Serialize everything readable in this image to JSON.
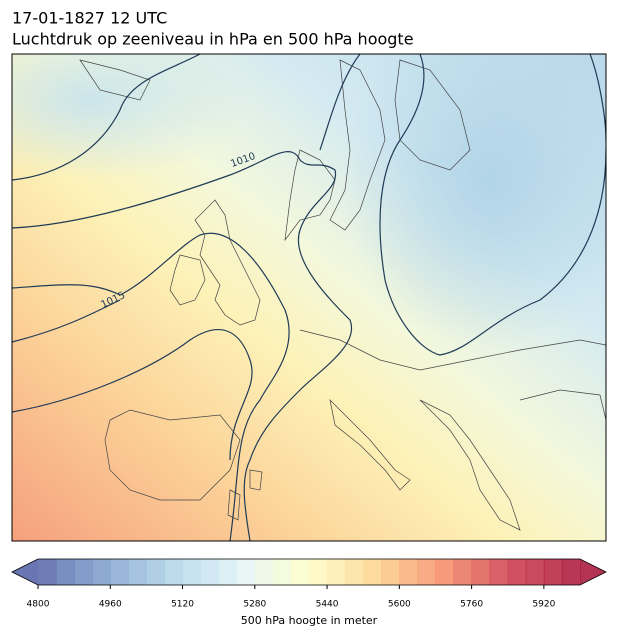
{
  "header": {
    "title": "17-01-1827 12 UTC",
    "subtitle": "Luchtdruk op zeeniveau in hPa en 500 hPa hoogte"
  },
  "map": {
    "contour_labels": [
      "1010",
      "1015"
    ]
  },
  "colorbar": {
    "label": "500 hPa hoogte in meter",
    "lim": [
      4800,
      6000
    ],
    "ticks": [
      4800,
      4960,
      5120,
      5280,
      5440,
      5600,
      5760,
      5920
    ]
  }
}
